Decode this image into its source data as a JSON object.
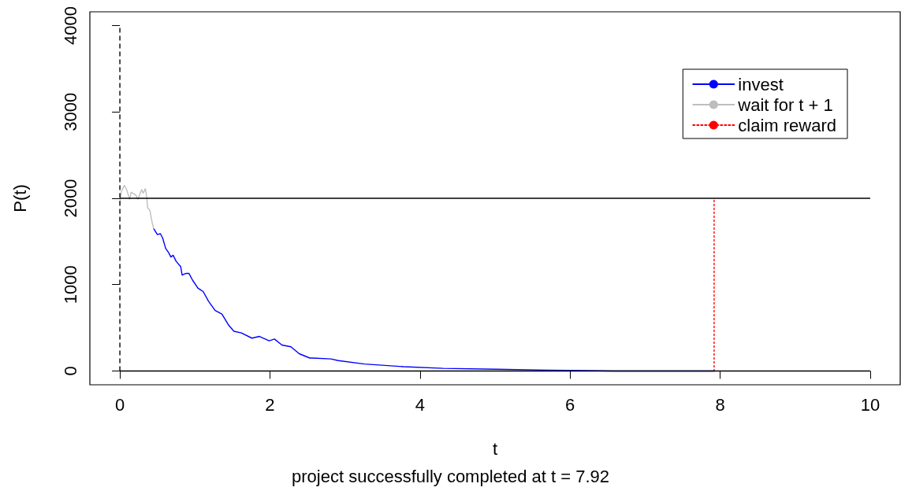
{
  "chart_data": {
    "type": "line",
    "xlabel": "t",
    "ylabel": "P(t)",
    "annotations": [
      "project successfully completed at t = 7.92"
    ],
    "xlim": [
      -0.4,
      10.4
    ],
    "xticks": [
      0,
      2,
      4,
      6,
      8,
      10
    ],
    "ylim": [
      -160,
      4160
    ],
    "yticks": [
      0,
      1000,
      2000,
      3000,
      4000
    ],
    "legend": "top right",
    "marker": "none",
    "ref_lines": [
      {
        "axis": "x",
        "value": 0,
        "color": "#000000",
        "line_style": "dashed"
      },
      {
        "axis": "y",
        "value": 2000,
        "color": "#000000",
        "line_style": "solid"
      },
      {
        "axis": "y",
        "value": 0,
        "color": "#000000",
        "line_style": "solid"
      }
    ],
    "series": [
      {
        "name": "invest",
        "color": "#0000ff",
        "line_style": "solid",
        "x": [
          0.45,
          0.5,
          0.54,
          0.57,
          0.61,
          0.65,
          0.68,
          0.71,
          0.75,
          0.81,
          0.83,
          0.88,
          0.92,
          0.97,
          1.04,
          1.11,
          1.18,
          1.27,
          1.36,
          1.45,
          1.52,
          1.62,
          1.76,
          1.86,
          1.99,
          2.06,
          2.16,
          2.28,
          2.39,
          2.53,
          2.56,
          2.81,
          2.91,
          3.26,
          3.78,
          4.31,
          5.01,
          5.7,
          6.58,
          7.92
        ],
        "values": [
          1650,
          1580,
          1590,
          1540,
          1420,
          1370,
          1320,
          1340,
          1270,
          1210,
          1110,
          1130,
          1130,
          1050,
          960,
          920,
          810,
          700,
          660,
          530,
          460,
          440,
          380,
          400,
          350,
          370,
          300,
          280,
          200,
          150,
          150,
          140,
          120,
          80,
          50,
          30,
          20,
          10,
          0,
          0
        ]
      },
      {
        "name": "wait for t + 1",
        "color": "#bebebe",
        "line_style": "solid",
        "x": [
          0,
          0.02,
          0.06,
          0.09,
          0.13,
          0.15,
          0.21,
          0.24,
          0.29,
          0.31,
          0.34,
          0.36,
          0.37,
          0.4,
          0.43,
          0.45
        ],
        "values": [
          1950,
          2080,
          2150,
          2100,
          1990,
          2070,
          2040,
          1990,
          2100,
          2060,
          2110,
          2000,
          1890,
          1860,
          1720,
          1650
        ]
      },
      {
        "name": "claim reward",
        "color": "#ff0000",
        "line_style": "dotted",
        "x": [
          7.92,
          7.92
        ],
        "values": [
          0,
          2000
        ]
      }
    ]
  }
}
